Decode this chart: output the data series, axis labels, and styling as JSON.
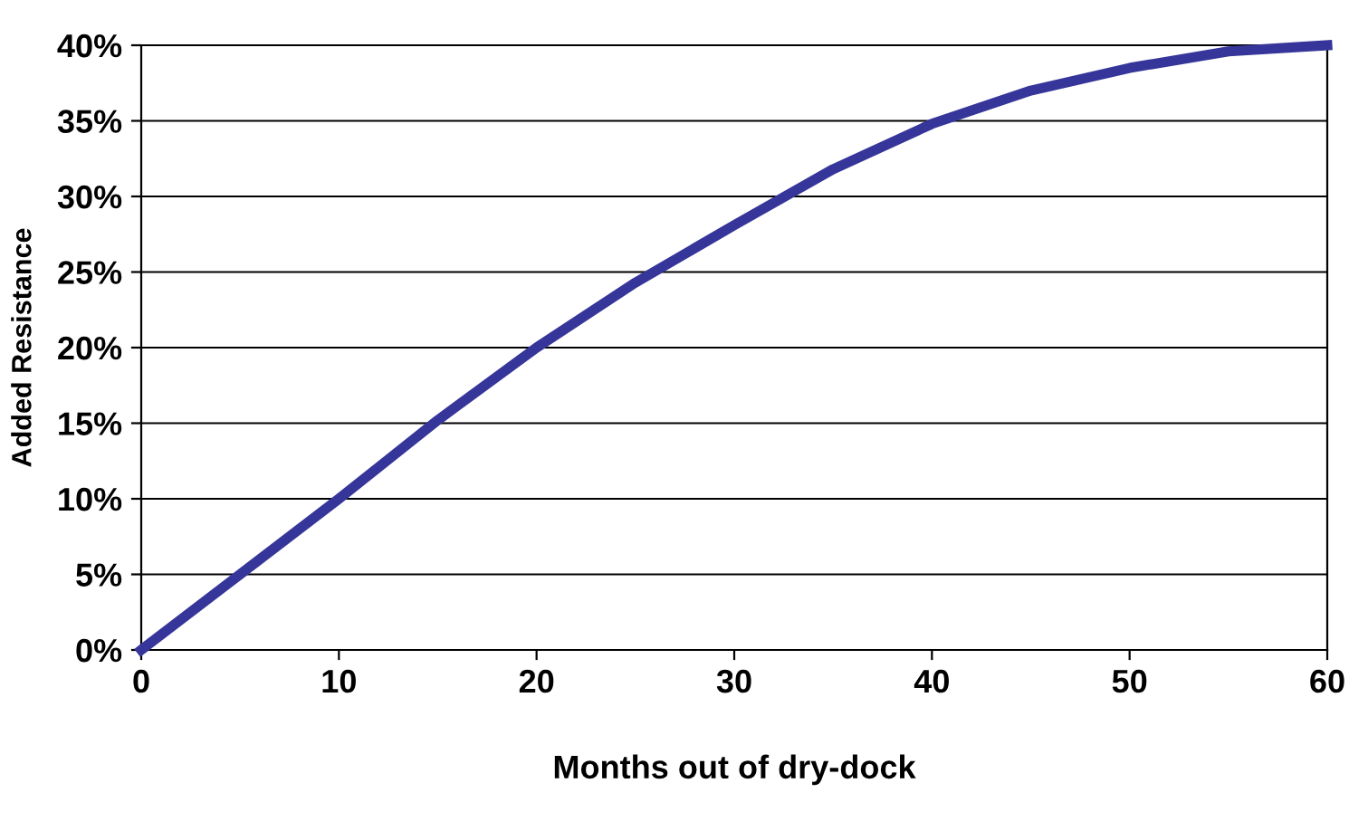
{
  "chart_data": {
    "type": "line",
    "xlabel": "Months out of dry-dock",
    "ylabel": "Added Resistance",
    "x": [
      0,
      5,
      10,
      15,
      20,
      25,
      30,
      35,
      40,
      45,
      50,
      55,
      60
    ],
    "series": [
      {
        "color": "#36369a",
        "values": [
          0,
          5,
          10,
          15.2,
          20,
          24.3,
          28.1,
          31.8,
          34.8,
          37,
          38.5,
          39.6,
          40
        ]
      }
    ],
    "xlim": [
      0,
      60
    ],
    "xticks": [
      0,
      10,
      20,
      30,
      40,
      50,
      60
    ],
    "ylim": [
      0,
      40
    ],
    "yticks": [
      {
        "value": 0,
        "label": "0%"
      },
      {
        "value": 5,
        "label": "5%"
      },
      {
        "value": 10,
        "label": "10%"
      },
      {
        "value": 15,
        "label": "15%"
      },
      {
        "value": 20,
        "label": "20%"
      },
      {
        "value": 25,
        "label": "25%"
      },
      {
        "value": 30,
        "label": "30%"
      },
      {
        "value": 35,
        "label": "35%"
      },
      {
        "value": 40,
        "label": "40%"
      }
    ],
    "grid": "y",
    "marker": "none",
    "line_style": "solid"
  }
}
